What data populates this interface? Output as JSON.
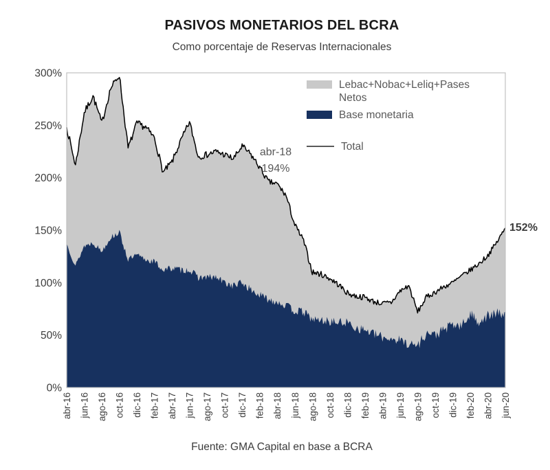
{
  "header": {
    "title": "PASIVOS MONETARIOS DEL BCRA",
    "subtitle": "Como porcentaje de Reservas Internacionales"
  },
  "legend": {
    "items": [
      {
        "label": "Lebac+Nobac+Leliq+Pases Netos",
        "swatch": "area",
        "color": "#C9C9C9"
      },
      {
        "label": "Base monetaria",
        "swatch": "area",
        "color": "#17315F"
      },
      {
        "label": "Total",
        "swatch": "line",
        "color": "#595959"
      }
    ]
  },
  "annotation": {
    "line1": "abr-18",
    "line2": "194%"
  },
  "end_label": "152%",
  "source": "Fuente: GMA Capital en base a BCRA",
  "colors": {
    "area_gray": "#C9C9C9",
    "area_navy": "#17315F",
    "total_line": "#000000",
    "legend_line": "#595959",
    "tick_text": "#3d3d3d",
    "border": "#C0C0C0"
  },
  "chart_data": {
    "type": "area",
    "title": "PASIVOS MONETARIOS DEL BCRA",
    "subtitle": "Como porcentaje de Reservas Internacionales",
    "stacked": true,
    "ylim": [
      0,
      300
    ],
    "y_tick_labels": [
      "300%",
      "250%",
      "200%",
      "150%",
      "100%",
      "50%",
      "0%"
    ],
    "x_tick_labels": [
      "abr-16",
      "jun-16",
      "ago-16",
      "oct-16",
      "dic-16",
      "feb-17",
      "abr-17",
      "jun-17",
      "ago-17",
      "oct-17",
      "dic-17",
      "feb-18",
      "abr-18",
      "jun-18",
      "ago-18",
      "oct-18",
      "dic-18",
      "feb-19",
      "abr-19",
      "jun-19",
      "ago-19",
      "oct-19",
      "dic-19",
      "feb-20",
      "abr-20",
      "jun-20"
    ],
    "months": [
      "abr-16",
      "may-16",
      "jun-16",
      "jul-16",
      "ago-16",
      "sep-16",
      "oct-16",
      "nov-16",
      "dic-16",
      "ene-17",
      "feb-17",
      "mar-17",
      "abr-17",
      "may-17",
      "jun-17",
      "jul-17",
      "ago-17",
      "sep-17",
      "oct-17",
      "nov-17",
      "dic-17",
      "ene-18",
      "feb-18",
      "mar-18",
      "abr-18",
      "may-18",
      "jun-18",
      "jul-18",
      "ago-18",
      "sep-18",
      "oct-18",
      "nov-18",
      "dic-18",
      "ene-19",
      "feb-19",
      "mar-19",
      "abr-19",
      "may-19",
      "jun-19",
      "jul-19",
      "ago-19",
      "sep-19",
      "oct-19",
      "nov-19",
      "dic-19",
      "ene-20",
      "feb-20",
      "mar-20",
      "abr-20",
      "may-20",
      "jun-20"
    ],
    "series": [
      {
        "name": "Total",
        "values": [
          248,
          212,
          262,
          278,
          252,
          285,
          298,
          228,
          252,
          248,
          238,
          205,
          215,
          235,
          253,
          220,
          222,
          225,
          222,
          218,
          230,
          222,
          210,
          196,
          194,
          183,
          155,
          140,
          110,
          108,
          104,
          98,
          90,
          87,
          86,
          82,
          80,
          81,
          92,
          97,
          72,
          86,
          91,
          96,
          100,
          106,
          112,
          118,
          126,
          138,
          152
        ]
      },
      {
        "name": "Base monetaria",
        "values": [
          137,
          116,
          135,
          138,
          130,
          143,
          148,
          122,
          126,
          122,
          120,
          112,
          114,
          112,
          112,
          105,
          105,
          105,
          100,
          97,
          100,
          93,
          88,
          84,
          82,
          78,
          73,
          72,
          65,
          64,
          63,
          62,
          62,
          57,
          55,
          51,
          48,
          47,
          45,
          42,
          40,
          52,
          50,
          55,
          60,
          58,
          70,
          63,
          68,
          70,
          72
        ]
      },
      {
        "name": "Lebac+Nobac+Leliq+Pases Netos",
        "note": "band stacked on top of Base monetaria; value = Total - Base monetaria",
        "values": [
          111,
          96,
          127,
          140,
          122,
          142,
          150,
          106,
          126,
          126,
          118,
          93,
          101,
          123,
          141,
          115,
          117,
          120,
          122,
          121,
          130,
          129,
          122,
          112,
          112,
          105,
          82,
          68,
          45,
          44,
          41,
          36,
          28,
          30,
          31,
          31,
          32,
          34,
          47,
          55,
          32,
          34,
          41,
          41,
          40,
          48,
          42,
          55,
          58,
          68,
          80
        ]
      }
    ],
    "annotations": [
      {
        "label": "abr-18 194%",
        "x": "abr-18",
        "y": 194
      },
      {
        "label": "152%",
        "x": "jun-20",
        "y": 152
      }
    ],
    "legend_position": "top-right-inside",
    "grid": false
  }
}
